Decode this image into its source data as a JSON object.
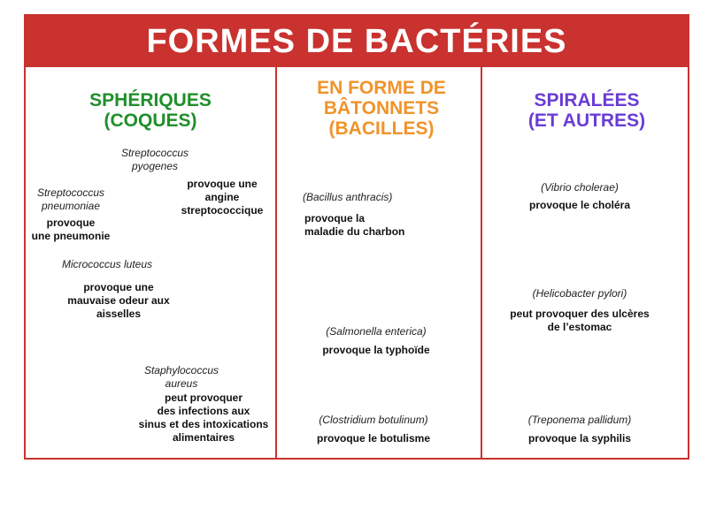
{
  "title": "FORMES DE BACTÉRIES",
  "colors": {
    "banner": "#c9322f",
    "spherical": "#1f8f2a",
    "rods": "#f0932b",
    "spiral": "#6a3cd6"
  },
  "columns": {
    "spherical": {
      "title_line1": "SPHÉRIQUES",
      "title_line2": "(COQUES)",
      "items": [
        {
          "species_l1": "Streptococcus",
          "species_l2": "pyogenes",
          "effect_l1": "provoque une",
          "effect_l2": "angine",
          "effect_l3": "streptococcique"
        },
        {
          "species_l1": "Streptococcus",
          "species_l2": "pneumoniae",
          "effect_l1": "provoque",
          "effect_l2": "une pneumonie"
        },
        {
          "species_l1": "Micrococcus luteus",
          "effect_l1": "provoque une",
          "effect_l2": "mauvaise odeur aux",
          "effect_l3": "aisselles"
        },
        {
          "species_l1": "Staphylococcus",
          "species_l2": "aureus",
          "effect_l1": "peut provoquer",
          "effect_l2": "des infections aux",
          "effect_l3": "sinus et des intoxications",
          "effect_l4": "alimentaires"
        }
      ]
    },
    "rods": {
      "title_line1": "EN FORME DE",
      "title_line2": "BÂTONNETS",
      "title_line3": "(BACILLES)",
      "items": [
        {
          "species": "(Bacillus anthracis)",
          "effect_l1": "provoque la",
          "effect_l2": "maladie du charbon"
        },
        {
          "species": "(Salmonella enterica)",
          "effect_l1": "provoque la typhoïde"
        },
        {
          "species": "(Clostridium botulinum)",
          "effect_l1": "provoque le botulisme"
        }
      ]
    },
    "spiral": {
      "title_line1": "SPIRALÉES",
      "title_line2": "(ET AUTRES)",
      "items": [
        {
          "species": "(Vibrio cholerae)",
          "effect_l1": "provoque le choléra"
        },
        {
          "species": "(Helicobacter pylori)",
          "effect_l1": "peut provoquer des ulcères",
          "effect_l2": "de l’estomac"
        },
        {
          "species": "(Treponema pallidum)",
          "effect_l1": "provoque la syphilis"
        }
      ]
    }
  }
}
